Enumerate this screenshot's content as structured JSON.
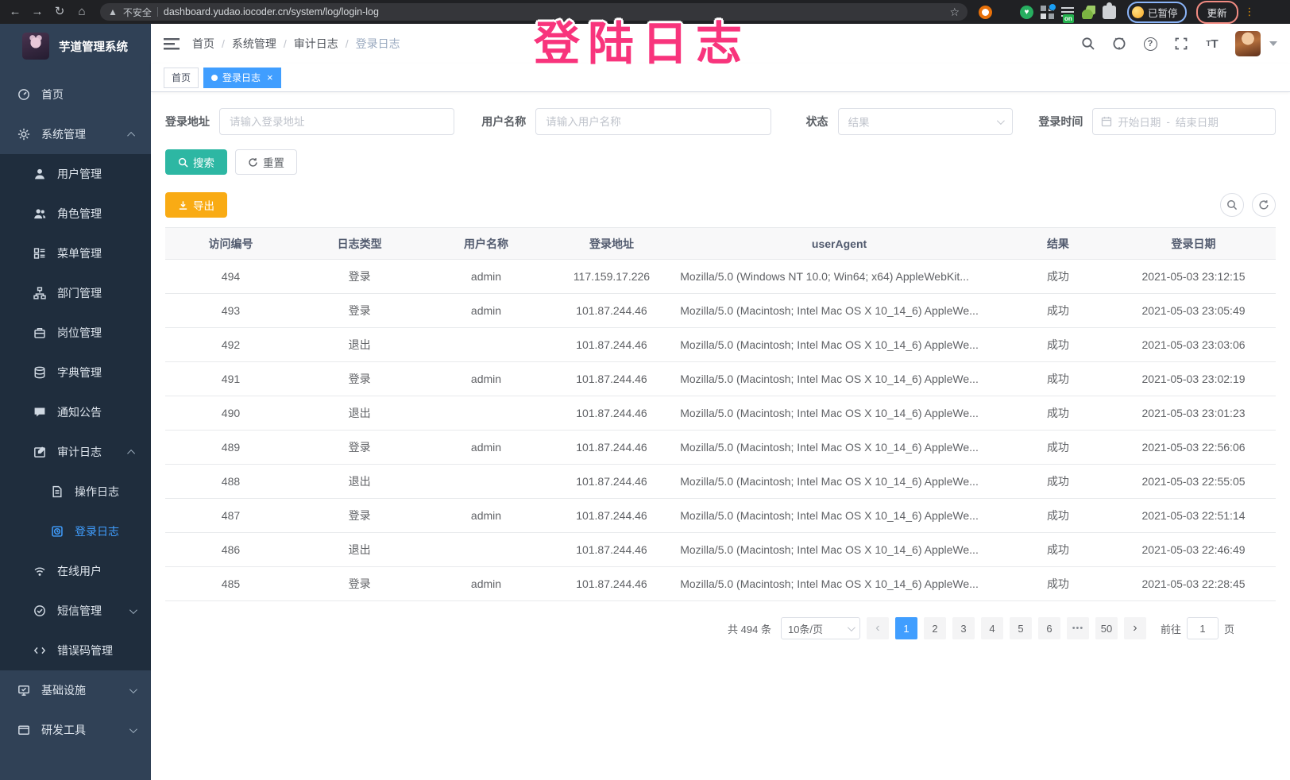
{
  "colors": {
    "accent": "#409eff",
    "sidebar_bg": "#304156",
    "submenu_bg": "#1f2d3d",
    "search_button": "#2db7a3",
    "export_button": "#f9ab14",
    "overlay_title_pink": "#f8347c"
  },
  "browser": {
    "security_label": "不安全",
    "url": "dashboard.yudao.iocoder.cn/system/log/login-log",
    "paused_badge": "已暂停",
    "update_button": "更新"
  },
  "overlay_title": "登陆日志",
  "sidebar": {
    "app_title": "芋道管理系统",
    "items": [
      {
        "label": "首页",
        "icon": "dashboard-icon",
        "level": 1,
        "arrow": "",
        "active": false
      },
      {
        "label": "系统管理",
        "icon": "gear-icon",
        "level": 1,
        "arrow": "up",
        "active": false
      },
      {
        "label": "用户管理",
        "icon": "user-icon",
        "level": 2,
        "arrow": "",
        "active": false
      },
      {
        "label": "角色管理",
        "icon": "users-icon",
        "level": 2,
        "arrow": "",
        "active": false
      },
      {
        "label": "菜单管理",
        "icon": "menu-list-icon",
        "level": 2,
        "arrow": "",
        "active": false
      },
      {
        "label": "部门管理",
        "icon": "org-tree-icon",
        "level": 2,
        "arrow": "",
        "active": false
      },
      {
        "label": "岗位管理",
        "icon": "briefcase-icon",
        "level": 2,
        "arrow": "",
        "active": false
      },
      {
        "label": "字典管理",
        "icon": "dict-icon",
        "level": 2,
        "arrow": "",
        "active": false
      },
      {
        "label": "通知公告",
        "icon": "notice-icon",
        "level": 2,
        "arrow": "",
        "active": false
      },
      {
        "label": "审计日志",
        "icon": "audit-icon",
        "level": 2,
        "arrow": "up",
        "active": false
      },
      {
        "label": "操作日志",
        "icon": "doc-icon",
        "level": 3,
        "arrow": "",
        "active": false
      },
      {
        "label": "登录日志",
        "icon": "login-log-icon",
        "level": 3,
        "arrow": "",
        "active": true
      },
      {
        "label": "在线用户",
        "icon": "online-icon",
        "level": 2,
        "arrow": "",
        "active": false
      },
      {
        "label": "短信管理",
        "icon": "sms-icon",
        "level": 2,
        "arrow": "down",
        "active": false
      },
      {
        "label": "错误码管理",
        "icon": "code-icon",
        "level": 2,
        "arrow": "",
        "active": false
      },
      {
        "label": "基础设施",
        "icon": "infra-icon",
        "level": 1,
        "arrow": "down",
        "active": false
      },
      {
        "label": "研发工具",
        "icon": "devtools-icon",
        "level": 1,
        "arrow": "down",
        "active": false
      }
    ]
  },
  "breadcrumb": [
    "首页",
    "系统管理",
    "审计日志",
    "登录日志"
  ],
  "tabs": [
    {
      "label": "首页",
      "active": false
    },
    {
      "label": "登录日志",
      "active": true
    }
  ],
  "filters": {
    "address_label": "登录地址",
    "address_placeholder": "请输入登录地址",
    "username_label": "用户名称",
    "username_placeholder": "请输入用户名称",
    "status_label": "状态",
    "status_placeholder": "结果",
    "time_label": "登录时间",
    "start_placeholder": "开始日期",
    "range_separator": "-",
    "end_placeholder": "结束日期",
    "search_label": "搜索",
    "reset_label": "重置",
    "export_label": "导出"
  },
  "table": {
    "headers": [
      "访问编号",
      "日志类型",
      "用户名称",
      "登录地址",
      "userAgent",
      "结果",
      "登录日期"
    ],
    "rows": [
      {
        "id": "494",
        "type": "登录",
        "user": "admin",
        "ip": "117.159.17.226",
        "ua": "Mozilla/5.0 (Windows NT 10.0; Win64; x64) AppleWebKit...",
        "result": "成功",
        "date": "2021-05-03 23:12:15"
      },
      {
        "id": "493",
        "type": "登录",
        "user": "admin",
        "ip": "101.87.244.46",
        "ua": "Mozilla/5.0 (Macintosh; Intel Mac OS X 10_14_6) AppleWe...",
        "result": "成功",
        "date": "2021-05-03 23:05:49"
      },
      {
        "id": "492",
        "type": "退出",
        "user": "",
        "ip": "101.87.244.46",
        "ua": "Mozilla/5.0 (Macintosh; Intel Mac OS X 10_14_6) AppleWe...",
        "result": "成功",
        "date": "2021-05-03 23:03:06"
      },
      {
        "id": "491",
        "type": "登录",
        "user": "admin",
        "ip": "101.87.244.46",
        "ua": "Mozilla/5.0 (Macintosh; Intel Mac OS X 10_14_6) AppleWe...",
        "result": "成功",
        "date": "2021-05-03 23:02:19"
      },
      {
        "id": "490",
        "type": "退出",
        "user": "",
        "ip": "101.87.244.46",
        "ua": "Mozilla/5.0 (Macintosh; Intel Mac OS X 10_14_6) AppleWe...",
        "result": "成功",
        "date": "2021-05-03 23:01:23"
      },
      {
        "id": "489",
        "type": "登录",
        "user": "admin",
        "ip": "101.87.244.46",
        "ua": "Mozilla/5.0 (Macintosh; Intel Mac OS X 10_14_6) AppleWe...",
        "result": "成功",
        "date": "2021-05-03 22:56:06"
      },
      {
        "id": "488",
        "type": "退出",
        "user": "",
        "ip": "101.87.244.46",
        "ua": "Mozilla/5.0 (Macintosh; Intel Mac OS X 10_14_6) AppleWe...",
        "result": "成功",
        "date": "2021-05-03 22:55:05"
      },
      {
        "id": "487",
        "type": "登录",
        "user": "admin",
        "ip": "101.87.244.46",
        "ua": "Mozilla/5.0 (Macintosh; Intel Mac OS X 10_14_6) AppleWe...",
        "result": "成功",
        "date": "2021-05-03 22:51:14"
      },
      {
        "id": "486",
        "type": "退出",
        "user": "",
        "ip": "101.87.244.46",
        "ua": "Mozilla/5.0 (Macintosh; Intel Mac OS X 10_14_6) AppleWe...",
        "result": "成功",
        "date": "2021-05-03 22:46:49"
      },
      {
        "id": "485",
        "type": "登录",
        "user": "admin",
        "ip": "101.87.244.46",
        "ua": "Mozilla/5.0 (Macintosh; Intel Mac OS X 10_14_6) AppleWe...",
        "result": "成功",
        "date": "2021-05-03 22:28:45"
      }
    ]
  },
  "pagination": {
    "total_text": "共 494 条",
    "page_size": "10条/页",
    "pages": [
      "1",
      "2",
      "3",
      "4",
      "5",
      "6",
      "•••",
      "50"
    ],
    "active_page": "1",
    "prev": "‹",
    "next": "›",
    "goto_label": "前往",
    "goto_value": "1",
    "page_unit": "页"
  }
}
